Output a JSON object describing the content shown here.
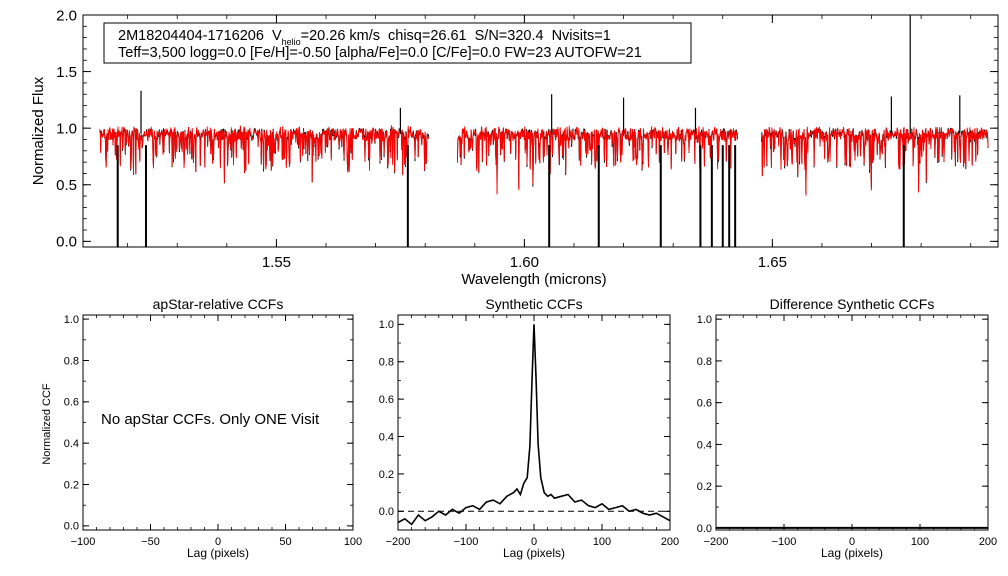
{
  "chart_data": [
    {
      "id": "spectrum",
      "type": "line",
      "info_line1": {
        "star": "2M18204404-1716206",
        "vhelio_label": "V",
        "vhelio_sub": "helio",
        "vhelio_value": "=20.26 km/s",
        "chisq": "chisq=26.61",
        "snr": "S/N=320.4",
        "nvisits": "Nvisits=1"
      },
      "info_line2": "Teff=3,500 logg=0.0 [Fe/H]=-0.50 [alpha/Fe]=0.0 [C/Fe]=0.0 FW=23 AUTOFW=21",
      "xlabel": "Wavelength (microns)",
      "ylabel": "Normalized Flux",
      "xlim": [
        1.511,
        1.6955
      ],
      "ylim": [
        -0.05,
        2.0
      ],
      "xticks": [
        1.55,
        1.6,
        1.65
      ],
      "xtick_labels": [
        "1.55",
        "1.60",
        "1.65"
      ],
      "yticks": [
        0.0,
        0.5,
        1.0,
        1.5,
        2.0
      ],
      "ytick_labels": [
        "0.0",
        "0.5",
        "1.0",
        "1.5",
        "2.0"
      ],
      "chip_ranges": [
        [
          1.5143,
          1.5807
        ],
        [
          1.5865,
          1.643
        ],
        [
          1.6478,
          1.6935
        ]
      ],
      "observed_color": "#000000",
      "model_color": "#ff0000",
      "continuum_level": 0.95,
      "deep_lines_to_zero": [
        1.518,
        1.5237,
        1.5765,
        1.605,
        1.615,
        1.6275,
        1.6355,
        1.6378,
        1.64,
        1.6413,
        1.6425,
        1.6765
      ],
      "spikes": [
        {
          "x": 1.5227,
          "y": 1.33
        },
        {
          "x": 1.6055,
          "y": 1.3
        },
        {
          "x": 1.62,
          "y": 1.27
        },
        {
          "x": 1.6345,
          "y": 1.18
        },
        {
          "x": 1.674,
          "y": 1.28
        },
        {
          "x": 1.6778,
          "y": 2.0
        },
        {
          "x": 1.6878,
          "y": 1.29
        },
        {
          "x": 1.575,
          "y": 1.18
        }
      ]
    },
    {
      "id": "apstar-ccf",
      "type": "line",
      "title": "apStar-relative CCFs",
      "xlabel": "Lag (pixels)",
      "ylabel": "Normalized CCF",
      "xlim": [
        -100,
        100
      ],
      "ylim": [
        -0.02,
        1.02
      ],
      "xticks": [
        -100,
        -50,
        0,
        50,
        100
      ],
      "xtick_labels": [
        "−100",
        "−50",
        "0",
        "50",
        "100"
      ],
      "yticks": [
        0.0,
        0.2,
        0.4,
        0.6,
        0.8,
        1.0
      ],
      "ytick_labels": [
        "0.0",
        "0.2",
        "0.4",
        "0.6",
        "0.8",
        "1.0"
      ],
      "series": [],
      "annotation": "No apStar CCFs.  Only ONE Visit"
    },
    {
      "id": "synthetic-ccf",
      "type": "line",
      "title": "Synthetic CCFs",
      "xlabel": "Lag (pixels)",
      "xlim": [
        -200,
        200
      ],
      "ylim": [
        -0.1,
        1.05
      ],
      "xticks": [
        -200,
        -100,
        0,
        100,
        200
      ],
      "xtick_labels": [
        "−200",
        "−100",
        "0",
        "100",
        "200"
      ],
      "yticks": [
        0.0,
        0.2,
        0.4,
        0.6,
        0.8,
        1.0
      ],
      "ytick_labels": [
        "0.0",
        "0.2",
        "0.4",
        "0.6",
        "0.8",
        "1.0"
      ],
      "reference_line_y": 0.0,
      "series": [
        {
          "name": "ccf",
          "x": [
            -200,
            -190,
            -180,
            -170,
            -160,
            -150,
            -140,
            -130,
            -120,
            -110,
            -100,
            -90,
            -80,
            -70,
            -60,
            -50,
            -40,
            -30,
            -25,
            -20,
            -15,
            -10,
            -6,
            -3,
            0,
            3,
            6,
            10,
            15,
            20,
            25,
            30,
            40,
            50,
            60,
            70,
            80,
            90,
            100,
            110,
            120,
            130,
            140,
            150,
            160,
            170,
            180,
            190,
            200
          ],
          "y": [
            -0.06,
            -0.04,
            -0.07,
            -0.02,
            -0.05,
            -0.03,
            0.0,
            -0.02,
            0.01,
            -0.01,
            0.02,
            0.03,
            0.01,
            0.05,
            0.06,
            0.04,
            0.08,
            0.1,
            0.12,
            0.09,
            0.15,
            0.18,
            0.35,
            0.7,
            1.0,
            0.72,
            0.36,
            0.18,
            0.1,
            0.08,
            0.09,
            0.07,
            0.08,
            0.09,
            0.05,
            0.06,
            0.03,
            0.02,
            0.04,
            0.01,
            0.02,
            0.03,
            0.0,
            0.01,
            -0.01,
            -0.02,
            -0.01,
            -0.03,
            -0.05
          ]
        }
      ]
    },
    {
      "id": "difference-ccf",
      "type": "line",
      "title": "Difference Synthetic CCFs",
      "xlabel": "Lag (pixels)",
      "xlim": [
        -200,
        200
      ],
      "ylim": [
        -0.01,
        1.02
      ],
      "xticks": [
        -200,
        -100,
        0,
        100,
        200
      ],
      "xtick_labels": [
        "−200",
        "−100",
        "0",
        "100",
        "200"
      ],
      "yticks": [
        0.0,
        0.2,
        0.4,
        0.6,
        0.8,
        1.0
      ],
      "ytick_labels": [
        "0.0",
        "0.2",
        "0.4",
        "0.6",
        "0.8",
        "1.0"
      ],
      "series": [
        {
          "name": "diff",
          "x": [
            -200,
            200
          ],
          "y": [
            0.0,
            0.0
          ]
        }
      ]
    }
  ]
}
